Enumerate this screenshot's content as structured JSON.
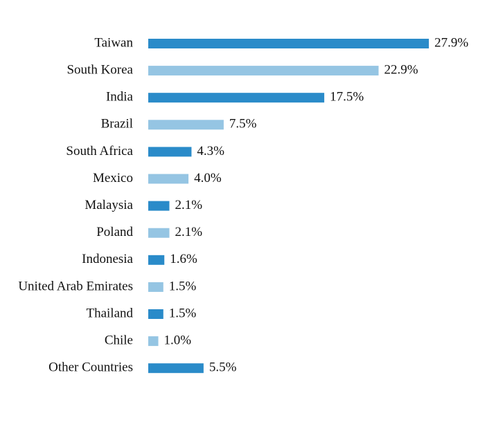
{
  "chart_data": {
    "type": "bar",
    "orientation": "horizontal",
    "categories": [
      "Taiwan",
      "South Korea",
      "India",
      "Brazil",
      "South Africa",
      "Mexico",
      "Malaysia",
      "Poland",
      "Indonesia",
      "United Arab Emirates",
      "Thailand",
      "Chile",
      "Other Countries"
    ],
    "values": [
      27.9,
      22.9,
      17.5,
      7.5,
      4.3,
      4.0,
      2.1,
      2.1,
      1.6,
      1.5,
      1.5,
      1.0,
      5.5
    ],
    "value_labels": [
      "27.9%",
      "22.9%",
      "17.5%",
      "7.5%",
      "4.3%",
      "4.0%",
      "2.1%",
      "2.1%",
      "1.6%",
      "1.5%",
      "1.5%",
      "1.0%",
      "5.5%"
    ],
    "colors": [
      "#2a8bc9",
      "#95c5e3"
    ]
  }
}
